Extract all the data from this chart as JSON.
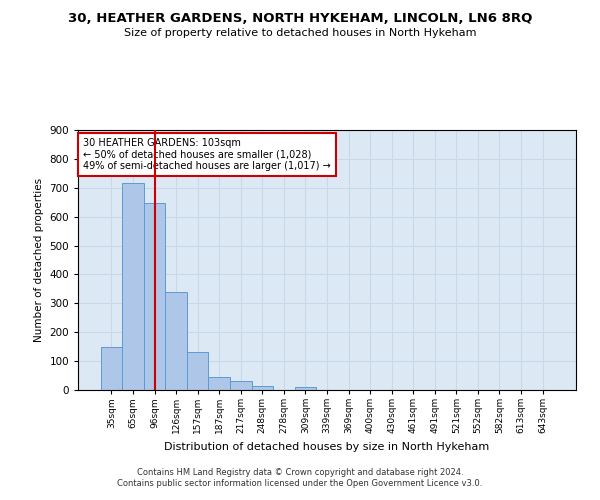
{
  "title": "30, HEATHER GARDENS, NORTH HYKEHAM, LINCOLN, LN6 8RQ",
  "subtitle": "Size of property relative to detached houses in North Hykeham",
  "xlabel": "Distribution of detached houses by size in North Hykeham",
  "ylabel": "Number of detached properties",
  "bin_labels": [
    "35sqm",
    "65sqm",
    "96sqm",
    "126sqm",
    "157sqm",
    "187sqm",
    "217sqm",
    "248sqm",
    "278sqm",
    "309sqm",
    "339sqm",
    "369sqm",
    "400sqm",
    "430sqm",
    "461sqm",
    "491sqm",
    "521sqm",
    "552sqm",
    "582sqm",
    "613sqm",
    "643sqm"
  ],
  "bar_heights": [
    150,
    715,
    648,
    340,
    130,
    45,
    32,
    13,
    0,
    10,
    0,
    0,
    0,
    0,
    0,
    0,
    0,
    0,
    0,
    0,
    0
  ],
  "bar_color": "#aec6e8",
  "bar_edge_color": "#5b9bd5",
  "grid_color": "#c8d8e8",
  "background_color": "#dce9f5",
  "red_line_bin_index": 2,
  "red_line_color": "#cc0000",
  "annotation_line1": "30 HEATHER GARDENS: 103sqm",
  "annotation_line2": "← 50% of detached houses are smaller (1,028)",
  "annotation_line3": "49% of semi-detached houses are larger (1,017) →",
  "annotation_box_color": "#ffffff",
  "annotation_box_edge": "#cc0000",
  "ylim": [
    0,
    900
  ],
  "yticks": [
    0,
    100,
    200,
    300,
    400,
    500,
    600,
    700,
    800,
    900
  ],
  "footer_line1": "Contains HM Land Registry data © Crown copyright and database right 2024.",
  "footer_line2": "Contains public sector information licensed under the Open Government Licence v3.0."
}
